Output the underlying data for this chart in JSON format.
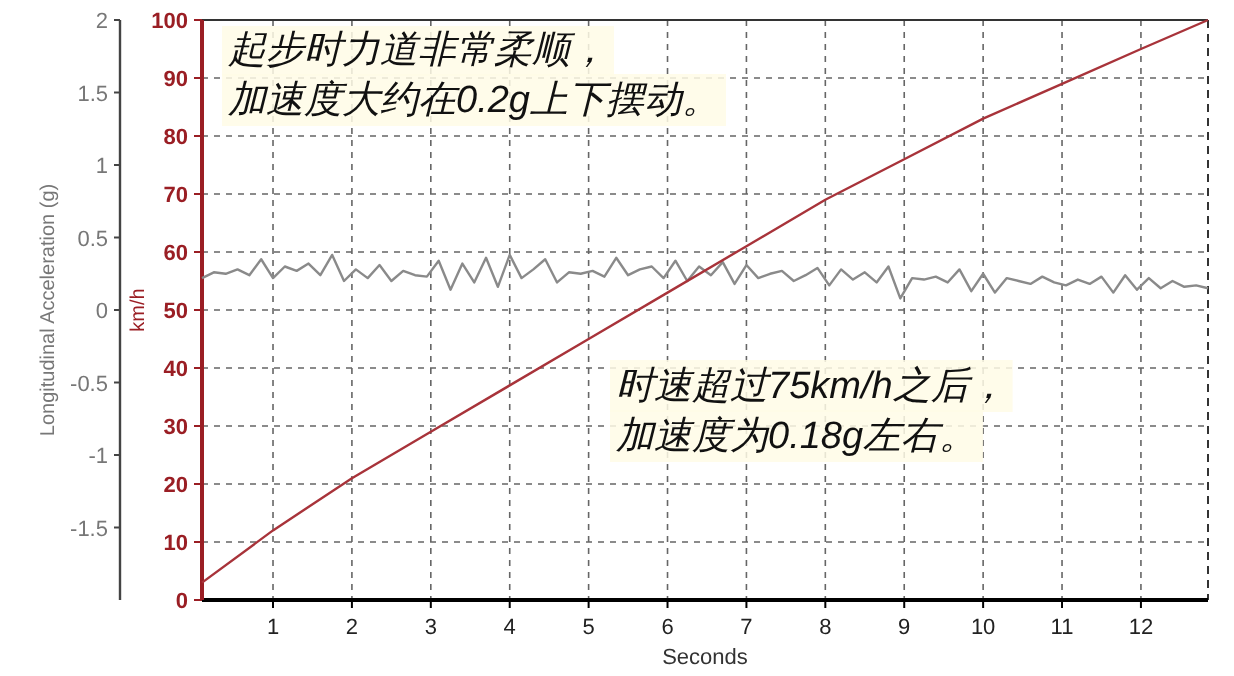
{
  "chart_data": {
    "type": "line",
    "xlabel": "Seconds",
    "ylabel": "Longitudinal Acceleration (g)",
    "y2label": "km/h",
    "xlim": [
      0.1,
      12.85
    ],
    "xticks": [
      1,
      2,
      3,
      4,
      5,
      6,
      7,
      8,
      9,
      10,
      11,
      12
    ],
    "ylim": [
      -2,
      2
    ],
    "yticks": [
      -1.5,
      -1,
      -0.5,
      0,
      0.5,
      1,
      1.5,
      2
    ],
    "y2lim": [
      0,
      100
    ],
    "y2ticks": [
      0,
      10,
      20,
      30,
      40,
      50,
      60,
      70,
      80,
      90,
      100
    ],
    "grid": true,
    "series": [
      {
        "color": "#8a8a8a",
        "x": [
          0.1,
          0.25,
          0.4,
          0.55,
          0.7,
          0.85,
          1,
          1.15,
          1.3,
          1.45,
          1.6,
          1.75,
          1.9,
          2.05,
          2.2,
          2.35,
          2.5,
          2.65,
          2.8,
          2.95,
          3.1,
          3.25,
          3.4,
          3.55,
          3.7,
          3.85,
          4,
          4.15,
          4.3,
          4.45,
          4.6,
          4.75,
          4.9,
          5.05,
          5.2,
          5.35,
          5.5,
          5.65,
          5.8,
          5.95,
          6.1,
          6.25,
          6.4,
          6.55,
          6.7,
          6.85,
          7,
          7.15,
          7.3,
          7.45,
          7.6,
          7.75,
          7.9,
          8.05,
          8.2,
          8.35,
          8.5,
          8.65,
          8.8,
          8.95,
          9.1,
          9.25,
          9.4,
          9.55,
          9.7,
          9.85,
          10,
          10.15,
          10.3,
          10.45,
          10.6,
          10.75,
          10.9,
          11.05,
          11.2,
          11.35,
          11.5,
          11.65,
          11.8,
          11.95,
          12.1,
          12.25,
          12.4,
          12.55,
          12.7,
          12.85
        ],
        "values": [
          0.22,
          0.26,
          0.25,
          0.28,
          0.24,
          0.35,
          0.22,
          0.3,
          0.27,
          0.32,
          0.24,
          0.38,
          0.2,
          0.28,
          0.22,
          0.31,
          0.2,
          0.27,
          0.24,
          0.23,
          0.34,
          0.14,
          0.32,
          0.19,
          0.36,
          0.16,
          0.38,
          0.22,
          0.28,
          0.35,
          0.19,
          0.26,
          0.25,
          0.27,
          0.23,
          0.36,
          0.24,
          0.28,
          0.3,
          0.22,
          0.34,
          0.2,
          0.3,
          0.24,
          0.33,
          0.18,
          0.31,
          0.22,
          0.25,
          0.27,
          0.2,
          0.24,
          0.29,
          0.17,
          0.28,
          0.21,
          0.26,
          0.19,
          0.3,
          0.08,
          0.22,
          0.21,
          0.23,
          0.19,
          0.28,
          0.13,
          0.25,
          0.12,
          0.22,
          0.2,
          0.18,
          0.23,
          0.19,
          0.17,
          0.21,
          0.18,
          0.23,
          0.12,
          0.24,
          0.14,
          0.22,
          0.15,
          0.2,
          0.16,
          0.17,
          0.15
        ]
      },
      {
        "axis": "y2",
        "color": "#a8333a",
        "x": [
          0.1,
          1,
          2,
          3,
          4,
          5,
          6,
          7,
          8,
          9,
          10,
          11,
          12,
          12.85
        ],
        "values": [
          3,
          12,
          21,
          29,
          37,
          45,
          53,
          61,
          69,
          76,
          83,
          89,
          95,
          100
        ]
      }
    ],
    "annotations": [
      "起步时力道非常柔顺，",
      "加速度大约在0.2g上下摆动。",
      "时速超过75km/h之后，",
      "加速度为0.18g左右。"
    ]
  }
}
